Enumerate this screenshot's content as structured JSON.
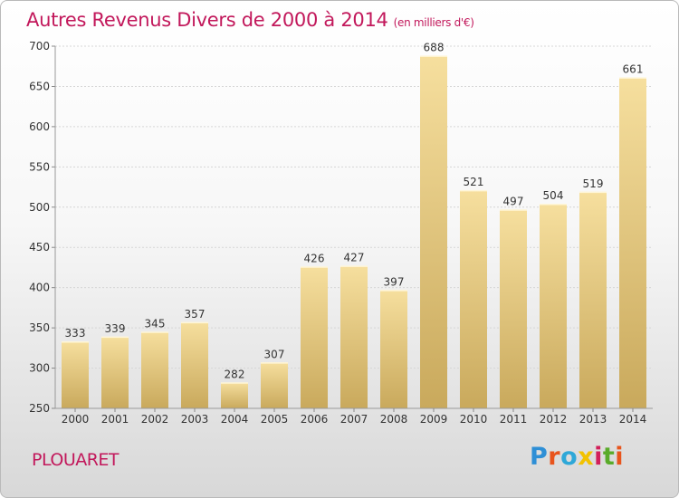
{
  "title": "Autres Revenus Divers de 2000 à 2014",
  "subtitle": "(en milliers d'€)",
  "commune": "PLOUARET",
  "logo": {
    "letters": [
      "P",
      "r",
      "o",
      "x",
      "i",
      "t",
      "i"
    ],
    "colors": [
      "#2e8fd6",
      "#e8541c",
      "#2ea8d8",
      "#f2c200",
      "#d21f5a",
      "#5aab2a",
      "#e8541c"
    ]
  },
  "chart_data": {
    "type": "bar",
    "categories": [
      "2000",
      "2001",
      "2002",
      "2003",
      "2004",
      "2005",
      "2006",
      "2007",
      "2008",
      "2009",
      "2010",
      "2011",
      "2012",
      "2013",
      "2014"
    ],
    "values": [
      333,
      339,
      345,
      357,
      282,
      307,
      426,
      427,
      397,
      688,
      521,
      497,
      504,
      519,
      661
    ],
    "ylim": [
      250,
      700
    ],
    "yticks": [
      250,
      300,
      350,
      400,
      450,
      500,
      550,
      600,
      650,
      700
    ],
    "grid": true,
    "bar_color_top": "#f6df9e",
    "bar_color_bottom": "#c9a95c"
  }
}
